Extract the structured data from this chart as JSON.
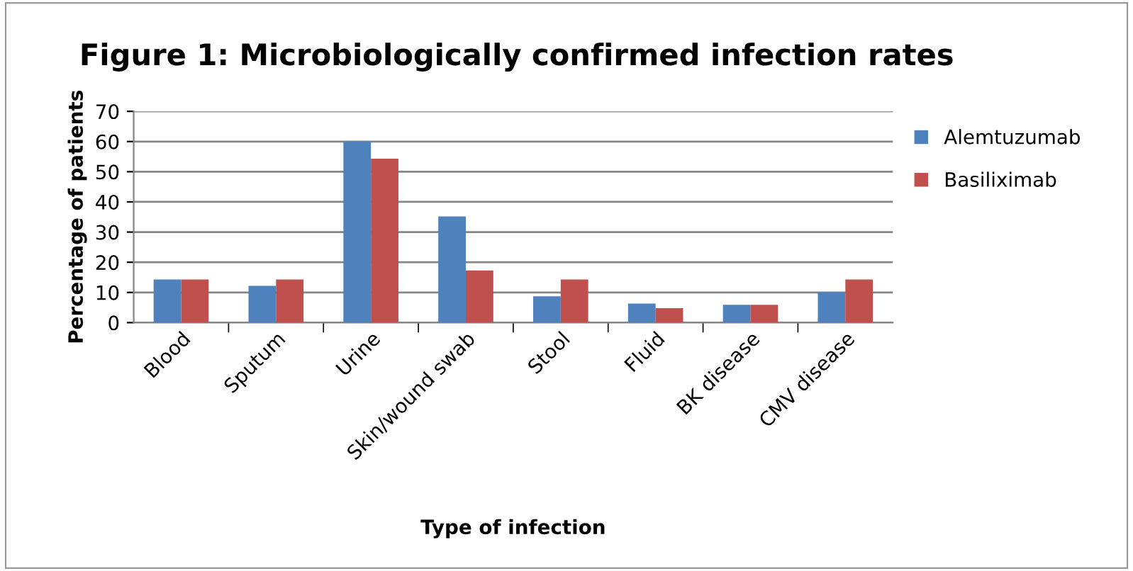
{
  "chart_data": {
    "type": "bar",
    "title": "Figure 1: Microbiologically confirmed infection rates",
    "xlabel": "Type of infection",
    "ylabel": "Percentage of patients",
    "categories": [
      "Blood",
      "Sputum",
      "Urine",
      "Skin/wound swab",
      "Stool",
      "Fluid",
      "BK disease",
      "CMV disease"
    ],
    "series": [
      {
        "name": "Alemtuzumab",
        "color": "#4f81bd",
        "values": [
          14.3,
          12.2,
          60,
          35.2,
          8.7,
          6.3,
          5.9,
          10.1
        ]
      },
      {
        "name": "Basiliximab",
        "color": "#c0504d",
        "values": [
          14.3,
          14.3,
          54.3,
          17.3,
          14.3,
          4.8,
          5.9,
          14.3
        ]
      }
    ],
    "ylim": [
      0,
      70
    ],
    "yticks": [
      0,
      10,
      20,
      30,
      40,
      50,
      60,
      70
    ],
    "grid": "y",
    "legend": "top right"
  }
}
